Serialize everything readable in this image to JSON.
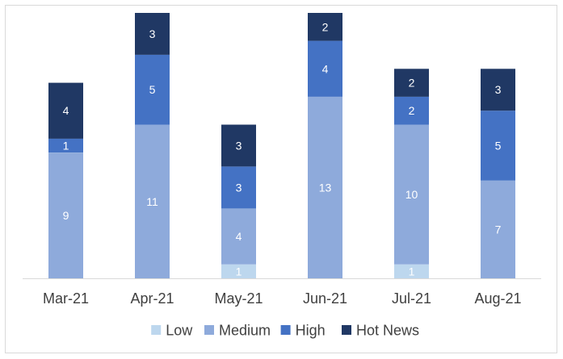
{
  "chart_data": {
    "type": "bar",
    "stacked": true,
    "categories": [
      "Mar-21",
      "Apr-21",
      "May-21",
      "Jun-21",
      "Jul-21",
      "Aug-21"
    ],
    "series": [
      {
        "name": "Low",
        "color": "#bdd7ee",
        "values": [
          0,
          0,
          1,
          0,
          1,
          0
        ]
      },
      {
        "name": "Medium",
        "color": "#8eaadb",
        "values": [
          9,
          11,
          4,
          13,
          10,
          7
        ]
      },
      {
        "name": "High",
        "color": "#4472c4",
        "values": [
          1,
          5,
          3,
          4,
          2,
          5
        ]
      },
      {
        "name": "Hot News",
        "color": "#203864",
        "values": [
          4,
          3,
          3,
          2,
          2,
          3
        ]
      }
    ],
    "ylim": [
      0,
      19
    ],
    "grid": false,
    "legend_position": "bottom",
    "title": "",
    "xlabel": "",
    "ylabel": ""
  }
}
